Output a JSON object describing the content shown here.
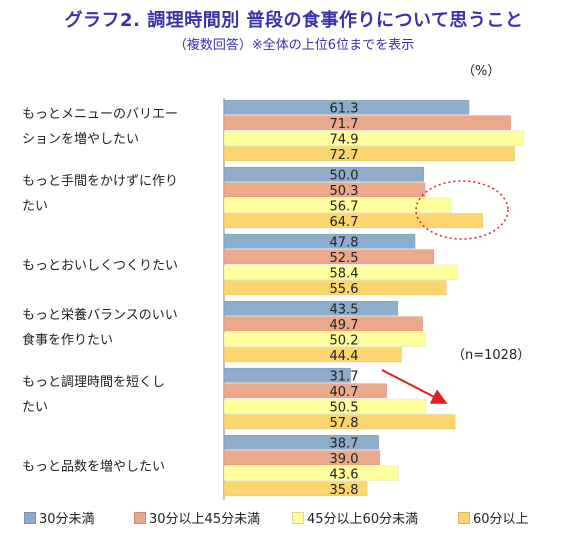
{
  "chart_data": {
    "type": "bar",
    "orientation": "horizontal",
    "title": "グラフ2. 調理時間別 普段の食事作りについて思うこと",
    "subtitle": "（複数回答）※全体の上位6位までを表示",
    "unit": "（%）",
    "sample_note": "（n=1028）",
    "categories": [
      [
        "もっとメニューのバリエー",
        "ションを増やしたい"
      ],
      [
        "もっと手間をかけずに作り",
        "たい"
      ],
      [
        "もっとおいしくつくりたい"
      ],
      [
        "もっと栄養バランスのいい",
        "食事を作りたい"
      ],
      [
        "もっと調理時間を短くし",
        "たい"
      ],
      [
        "もっと品数を増やしたい"
      ]
    ],
    "series": [
      {
        "name": "30分未満",
        "color": "#8eaccb",
        "values": [
          61.3,
          50.0,
          47.8,
          43.5,
          31.7,
          38.7
        ]
      },
      {
        "name": "30分以上45分未満",
        "color": "#eaa98a",
        "values": [
          71.7,
          50.3,
          52.5,
          49.7,
          40.7,
          39.0
        ]
      },
      {
        "name": "45分以上60分未満",
        "color": "#ffff9e",
        "values": [
          74.9,
          56.7,
          58.4,
          50.2,
          50.5,
          43.6
        ]
      },
      {
        "name": "60分以上",
        "color": "#fcd56e",
        "values": [
          72.7,
          64.7,
          55.6,
          44.4,
          57.8,
          35.8
        ]
      }
    ],
    "value_labels": [
      [
        "61.3",
        "71.7",
        "74.9",
        "72.7"
      ],
      [
        "50.0",
        "50.3",
        "56.7",
        "64.7"
      ],
      [
        "47.8",
        "52.5",
        "58.4",
        "55.6"
      ],
      [
        "43.5",
        "49.7",
        "50.2",
        "44.4"
      ],
      [
        "31.7",
        "40.7",
        "50.5",
        "57.8"
      ],
      [
        "38.7",
        "39.0",
        "43.6",
        "35.8"
      ]
    ],
    "xlim": [
      0,
      100
    ],
    "grid": false,
    "legend_position": "bottom",
    "annotations": [
      "dotted-red-ellipse around 手間 45-60 & 60+ bars",
      "red arrow pointing right toward 調理時間 60+ bar"
    ]
  }
}
